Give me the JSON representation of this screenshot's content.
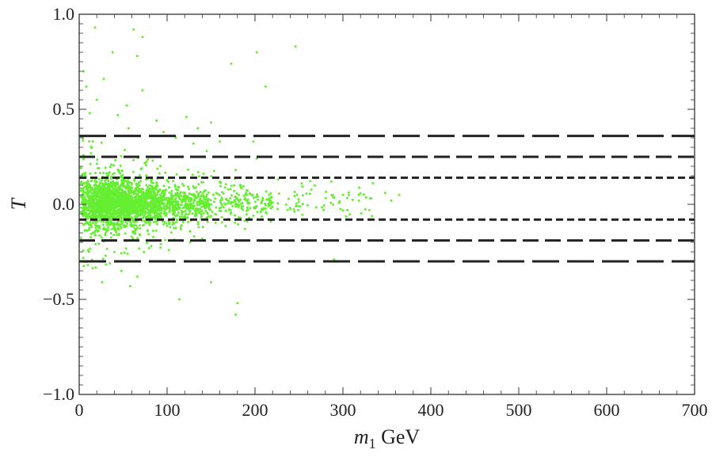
{
  "chart_data": {
    "type": "scatter",
    "title": "",
    "xlabel": {
      "main": "m",
      "subscript": "1",
      "unit": "GeV"
    },
    "ylabel": "T",
    "xlim": [
      0,
      700
    ],
    "ylim": [
      -1.0,
      1.0
    ],
    "x_ticks": [
      0,
      100,
      200,
      300,
      400,
      500,
      600,
      700
    ],
    "x_tick_labels": [
      "0",
      "100",
      "200",
      "300",
      "400",
      "500",
      "600",
      "700"
    ],
    "y_ticks": [
      -1.0,
      -0.5,
      0.0,
      0.5,
      1.0
    ],
    "y_tick_labels": [
      "−1.0",
      "−0.5",
      "0.0",
      "0.5",
      "1.0"
    ],
    "grid": false,
    "marker_color": "#66ee33",
    "line_color": "#222222",
    "reference_lines": [
      {
        "y": 0.36,
        "style": "long-dash"
      },
      {
        "y": 0.25,
        "style": "medium-dash"
      },
      {
        "y": 0.14,
        "style": "short-dash"
      },
      {
        "y": -0.08,
        "style": "short-dash"
      },
      {
        "y": -0.19,
        "style": "medium-dash"
      },
      {
        "y": -0.3,
        "style": "long-dash"
      }
    ],
    "scatter_outliers": [
      [
        18,
        0.93
      ],
      [
        62,
        0.92
      ],
      [
        38,
        0.8
      ],
      [
        72,
        0.88
      ],
      [
        66,
        0.78
      ],
      [
        173,
        0.74
      ],
      [
        202,
        0.8
      ],
      [
        246,
        0.83
      ],
      [
        212,
        0.62
      ],
      [
        20,
        0.55
      ],
      [
        72,
        0.6
      ],
      [
        54,
        0.52
      ],
      [
        88,
        0.44
      ],
      [
        122,
        0.46
      ],
      [
        135,
        0.4
      ],
      [
        150,
        0.43
      ],
      [
        160,
        0.33
      ],
      [
        198,
        0.33
      ],
      [
        178,
        0.18
      ],
      [
        202,
        0.24
      ],
      [
        226,
        0.13
      ],
      [
        253,
        0.11
      ],
      [
        268,
        0.1
      ],
      [
        287,
        0.12
      ],
      [
        300,
        0.05
      ],
      [
        318,
        0.05
      ],
      [
        332,
        0.03
      ],
      [
        348,
        0.06
      ],
      [
        355,
        0.02
      ],
      [
        364,
        0.05
      ],
      [
        305,
        -0.03
      ],
      [
        278,
        -0.03
      ],
      [
        240,
        -0.02
      ],
      [
        290,
        -0.29
      ],
      [
        330,
        -0.03
      ],
      [
        198,
        -0.06
      ],
      [
        218,
        -0.09
      ],
      [
        150,
        -0.41
      ],
      [
        114,
        -0.5
      ],
      [
        180,
        -0.52
      ],
      [
        178,
        -0.58
      ],
      [
        58,
        -0.43
      ],
      [
        48,
        -0.35
      ],
      [
        30,
        -0.27
      ],
      [
        82,
        -0.22
      ],
      [
        102,
        -0.24
      ],
      [
        66,
        -0.38
      ],
      [
        10,
        -0.32
      ],
      [
        26,
        -0.41
      ],
      [
        140,
        -0.18
      ],
      [
        126,
        -0.2
      ],
      [
        5,
        0.7
      ],
      [
        8,
        0.62
      ],
      [
        12,
        0.48
      ],
      [
        28,
        0.66
      ],
      [
        44,
        0.47
      ],
      [
        56,
        0.4
      ],
      [
        96,
        0.38
      ],
      [
        110,
        0.35
      ],
      [
        130,
        0.32
      ],
      [
        145,
        0.28
      ]
    ]
  }
}
